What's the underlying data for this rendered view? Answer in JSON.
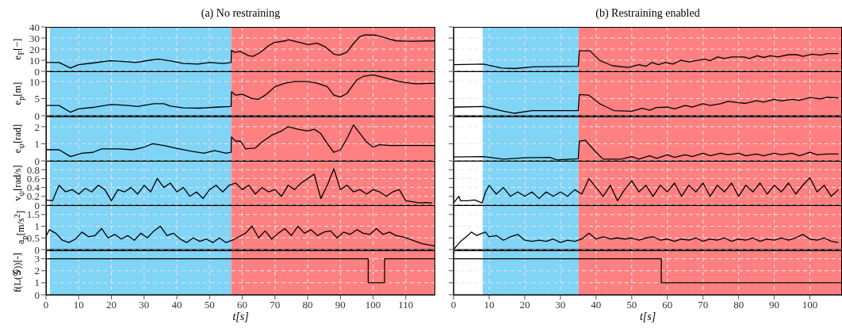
{
  "chart_data": [
    {
      "type": "line",
      "title": "(a) No restraining",
      "ylabel": "e$_{F}$[−]",
      "color": "#000000",
      "grid": true,
      "tick_labels": "y",
      "xlim": [
        0,
        119
      ],
      "xticks": [
        0,
        10,
        20,
        30,
        40,
        50,
        60,
        70,
        80,
        90,
        100,
        110
      ],
      "ylim": [
        0,
        40
      ],
      "yticks": [
        0,
        10,
        20,
        30,
        40
      ],
      "bands": [
        {
          "axis": "x",
          "from": 1.2,
          "to": 56.6,
          "color": "#80d4f6"
        },
        {
          "axis": "x",
          "from": 56.6,
          "to": 119,
          "color": "#ff8080"
        }
      ],
      "x": [
        0,
        4,
        7.5,
        10,
        14.4,
        19.6,
        23,
        27.4,
        31.7,
        34.3,
        37.8,
        42,
        46.5,
        50,
        54.2,
        56.6,
        56.7,
        57.7,
        59.4,
        62,
        63.3,
        65.5,
        68,
        69.8,
        73.3,
        74.1,
        77.6,
        80.2,
        82.8,
        85.4,
        88,
        89.7,
        91.9,
        94,
        95.8,
        97.5,
        101,
        104.4,
        107,
        111.3,
        119
      ],
      "values": [
        8,
        8,
        3,
        6,
        7.5,
        9.5,
        9,
        8,
        10,
        11,
        9.5,
        7,
        6.5,
        8,
        7,
        8,
        19,
        17,
        18,
        14,
        13.5,
        17,
        23,
        26,
        27.5,
        28.5,
        26,
        24,
        25.5,
        22,
        15.5,
        14.5,
        17,
        25,
        31,
        33,
        32.5,
        29.5,
        27.5,
        27,
        27.5
      ]
    },
    {
      "type": "line",
      "ylabel": "e$_{p}$[m]",
      "color": "#000000",
      "grid": true,
      "tick_labels": "y",
      "xlim": [
        0,
        119
      ],
      "xticks": [
        0,
        10,
        20,
        30,
        40,
        50,
        60,
        70,
        80,
        90,
        100,
        110
      ],
      "ylim": [
        0,
        13
      ],
      "yticks": [
        0,
        5,
        10
      ],
      "bands": [
        {
          "axis": "x",
          "from": 1.2,
          "to": 56.6,
          "color": "#80d4f6"
        },
        {
          "axis": "x",
          "from": 56.6,
          "to": 119,
          "color": "#ff8080"
        }
      ],
      "x": [
        0,
        4,
        7.5,
        10,
        15,
        20,
        25,
        28,
        33,
        36,
        38,
        42,
        47,
        52,
        56.6,
        56.7,
        58,
        60,
        63,
        65,
        67,
        70,
        73,
        76,
        80,
        83,
        86,
        88,
        90,
        92,
        95,
        97,
        100,
        104,
        108,
        113,
        119
      ],
      "values": [
        3,
        3,
        1,
        2,
        2.5,
        3.3,
        3,
        2.7,
        3.5,
        3.5,
        2.8,
        2.3,
        2.2,
        2.5,
        2.7,
        7,
        6,
        6.3,
        5,
        4.8,
        6,
        8.5,
        9.5,
        10,
        10,
        9.5,
        8.5,
        6,
        5.5,
        6.5,
        10.5,
        11.5,
        12,
        11,
        10,
        9.3,
        9.5
      ]
    },
    {
      "type": "line",
      "ylabel": "e$_{ψ}$[rad]",
      "color": "#000000",
      "grid": true,
      "tick_labels": "y",
      "xlim": [
        0,
        119
      ],
      "xticks": [
        0,
        10,
        20,
        30,
        40,
        50,
        60,
        70,
        80,
        90,
        100,
        110
      ],
      "ylim": [
        0,
        2.6
      ],
      "yticks": [
        0,
        1,
        2
      ],
      "bands": [
        {
          "axis": "x",
          "from": 1.2,
          "to": 56.6,
          "color": "#80d4f6"
        },
        {
          "axis": "x",
          "from": 56.6,
          "to": 119,
          "color": "#ff8080"
        }
      ],
      "x": [
        0,
        4,
        7.5,
        11,
        14.4,
        17,
        22.2,
        26.5,
        30,
        32.6,
        36,
        39.5,
        44.7,
        48.2,
        51.6,
        55.1,
        56.6,
        56.7,
        58,
        59.5,
        61,
        64,
        66,
        69,
        72,
        74,
        77,
        80,
        82,
        84,
        86,
        88,
        90,
        92,
        94,
        96,
        98,
        100,
        102,
        105,
        119
      ],
      "values": [
        0.65,
        0.65,
        0.25,
        0.45,
        0.5,
        0.7,
        0.7,
        0.65,
        0.8,
        1.0,
        0.9,
        0.75,
        0.55,
        0.45,
        0.6,
        0.45,
        0.5,
        1.4,
        1.15,
        1.15,
        0.7,
        0.75,
        1.1,
        1.5,
        1.75,
        2.0,
        1.85,
        1.75,
        1.85,
        1.6,
        1.0,
        0.5,
        0.65,
        1.3,
        2.1,
        1.6,
        1.1,
        0.8,
        0.95,
        0.9,
        0.9
      ]
    },
    {
      "type": "line",
      "ylabel": "v$_{ψ}$[rad/s]",
      "color": "#000000",
      "grid": true,
      "tick_labels": "y",
      "xlim": [
        0,
        119
      ],
      "xticks": [
        0,
        10,
        20,
        30,
        40,
        50,
        60,
        70,
        80,
        90,
        100,
        110
      ],
      "ylim": [
        0,
        1
      ],
      "yticks": [
        0,
        0.2,
        0.4,
        0.6,
        0.8
      ],
      "bands": [
        {
          "axis": "x",
          "from": 1.2,
          "to": 56.6,
          "color": "#80d4f6"
        },
        {
          "axis": "x",
          "from": 56.6,
          "to": 119,
          "color": "#ff8080"
        }
      ],
      "x": [
        0,
        2,
        4,
        6,
        8,
        10,
        12,
        14,
        16,
        18,
        20,
        22,
        24,
        26,
        28,
        30,
        32,
        34,
        36,
        38,
        40,
        42,
        44,
        46,
        48,
        50,
        52,
        54,
        56,
        58,
        60,
        62,
        64,
        66,
        68,
        70,
        72,
        74,
        76,
        78,
        80,
        82,
        84,
        86,
        88,
        90,
        92,
        94,
        96,
        98,
        100,
        102,
        104,
        106,
        108,
        110,
        112,
        114,
        116,
        118
      ],
      "values": [
        0.12,
        0.1,
        0.45,
        0.3,
        0.35,
        0.25,
        0.38,
        0.3,
        0.45,
        0.35,
        0.1,
        0.35,
        0.3,
        0.4,
        0.25,
        0.45,
        0.3,
        0.6,
        0.4,
        0.5,
        0.3,
        0.4,
        0.2,
        0.3,
        0.15,
        0.35,
        0.45,
        0.3,
        0.45,
        0.5,
        0.35,
        0.45,
        0.25,
        0.4,
        0.3,
        0.35,
        0.2,
        0.45,
        0.35,
        0.5,
        0.6,
        0.7,
        0.15,
        0.45,
        0.82,
        0.35,
        0.45,
        0.3,
        0.35,
        0.25,
        0.35,
        0.3,
        0.2,
        0.3,
        0.35,
        0.1,
        0.08,
        0.05,
        0.06,
        0.05
      ]
    },
    {
      "type": "line",
      "ylabel": "a$_{p}$[m/s$^{2}$]",
      "color": "#000000",
      "grid": true,
      "tick_labels": "y",
      "xlim": [
        0,
        119
      ],
      "xticks": [
        0,
        10,
        20,
        30,
        40,
        50,
        60,
        70,
        80,
        90,
        100,
        110
      ],
      "ylim": [
        0,
        1.9
      ],
      "yticks": [
        0,
        0.5,
        1,
        1.5
      ],
      "bands": [
        {
          "axis": "x",
          "from": 1.2,
          "to": 56.6,
          "color": "#80d4f6"
        },
        {
          "axis": "x",
          "from": 56.6,
          "to": 119,
          "color": "#ff8080"
        }
      ],
      "x": [
        0,
        1,
        3,
        5,
        7,
        9,
        11,
        13,
        15,
        17,
        19,
        21,
        23,
        25,
        27,
        29,
        31,
        33,
        35,
        37,
        39,
        41,
        43,
        45,
        47,
        49,
        51,
        53,
        55,
        57,
        59,
        61,
        63,
        65,
        67,
        69,
        71,
        73,
        75,
        77,
        79,
        81,
        83,
        85,
        87,
        89,
        91,
        93,
        95,
        97,
        99,
        101,
        103,
        105,
        107,
        109,
        111,
        113,
        115,
        117,
        119
      ],
      "values": [
        0.55,
        0.85,
        0.7,
        0.4,
        0.3,
        0.45,
        0.75,
        0.55,
        0.6,
        0.9,
        0.5,
        0.65,
        0.45,
        0.6,
        0.4,
        0.7,
        0.5,
        0.8,
        1.0,
        0.6,
        0.7,
        0.45,
        0.3,
        0.5,
        0.35,
        0.45,
        0.3,
        0.5,
        0.3,
        0.4,
        0.55,
        0.7,
        1.0,
        0.5,
        0.8,
        0.45,
        0.7,
        0.9,
        0.6,
        1.0,
        0.7,
        0.85,
        0.6,
        0.75,
        0.8,
        0.5,
        0.75,
        0.65,
        0.85,
        0.7,
        0.65,
        0.9,
        0.65,
        0.75,
        0.6,
        0.55,
        0.45,
        0.35,
        0.25,
        0.2,
        0.15
      ]
    },
    {
      "type": "step",
      "ylabel": "f(L(𝒢))[-]",
      "xlabel": "t[s]",
      "color": "#000000",
      "grid": true,
      "xlim": [
        0,
        119
      ],
      "xticks": [
        0,
        10,
        20,
        30,
        40,
        50,
        60,
        70,
        80,
        90,
        100,
        110
      ],
      "ylim": [
        0,
        3.7
      ],
      "yticks": [
        0,
        1,
        2,
        3
      ],
      "bands": [
        {
          "axis": "x",
          "from": 1.2,
          "to": 56.6,
          "color": "#80d4f6"
        },
        {
          "axis": "x",
          "from": 56.6,
          "to": 119,
          "color": "#ff8080"
        }
      ],
      "x": [
        0,
        98.5,
        103.5,
        119
      ],
      "values": [
        3,
        1,
        3,
        3
      ]
    },
    {
      "type": "line",
      "title": "(b) Restraining enabled",
      "color": "#000000",
      "grid": true,
      "tick_labels": false,
      "xlim": [
        0,
        109
      ],
      "xticks": [
        0,
        10,
        20,
        30,
        40,
        50,
        60,
        70,
        80,
        90,
        100
      ],
      "ylim": [
        0,
        40
      ],
      "yticks": [
        0,
        10,
        20,
        30,
        40
      ],
      "bands": [
        {
          "axis": "x",
          "from": 8.2,
          "to": 35.1,
          "color": "#80d4f6"
        },
        {
          "axis": "x",
          "from": 35.1,
          "to": 109,
          "color": "#ff8080"
        }
      ],
      "x": [
        0,
        8.4,
        13.5,
        17.2,
        22.4,
        35,
        35.3,
        38.3,
        40.9,
        44.6,
        49,
        52,
        54,
        55.7,
        57.5,
        59.4,
        61.5,
        63.8,
        66,
        70.4,
        72,
        74.1,
        76,
        78,
        81.5,
        83,
        85.2,
        87,
        88.9,
        91,
        94,
        96.3,
        98,
        100.7,
        103,
        105,
        108
      ],
      "values": [
        6,
        6.5,
        3,
        2.5,
        4,
        4.5,
        18.5,
        18.5,
        10,
        5,
        3.5,
        6,
        4.5,
        8,
        6,
        8,
        6.5,
        10,
        8.5,
        11,
        9.5,
        13,
        11.5,
        13,
        13,
        11.5,
        14,
        12.5,
        14,
        13,
        15,
        15,
        13.5,
        15.5,
        14.5,
        16,
        16
      ]
    },
    {
      "type": "line",
      "color": "#000000",
      "grid": true,
      "tick_labels": false,
      "xlim": [
        0,
        109
      ],
      "xticks": [
        0,
        10,
        20,
        30,
        40,
        50,
        60,
        70,
        80,
        90,
        100
      ],
      "ylim": [
        0,
        13
      ],
      "yticks": [
        0,
        5,
        10
      ],
      "bands": [
        {
          "axis": "x",
          "from": 8.2,
          "to": 35.1,
          "color": "#80d4f6"
        },
        {
          "axis": "x",
          "from": 35.1,
          "to": 109,
          "color": "#ff8080"
        }
      ],
      "x": [
        0,
        8.4,
        14,
        17,
        22,
        35,
        35.3,
        38,
        41,
        45,
        50,
        53,
        55,
        57,
        60,
        62,
        65,
        67,
        70,
        72,
        75,
        77,
        80,
        82,
        85,
        87,
        90,
        92,
        95,
        97,
        100,
        103,
        105,
        108
      ],
      "values": [
        2.5,
        2.7,
        1.3,
        0.7,
        1.5,
        1.5,
        6.2,
        6,
        3.5,
        1.5,
        1.3,
        2.2,
        1.6,
        2.4,
        2.5,
        2,
        3,
        2.5,
        3.5,
        3,
        3.5,
        4.2,
        3.8,
        3.6,
        4.4,
        4,
        4.8,
        4.3,
        4.8,
        4.5,
        5.3,
        4.9,
        5.4,
        5.2
      ]
    },
    {
      "type": "line",
      "color": "#000000",
      "grid": true,
      "tick_labels": false,
      "xlim": [
        0,
        109
      ],
      "xticks": [
        0,
        10,
        20,
        30,
        40,
        50,
        60,
        70,
        80,
        90,
        100
      ],
      "ylim": [
        0,
        2.6
      ],
      "yticks": [
        0,
        1,
        2
      ],
      "bands": [
        {
          "axis": "x",
          "from": 8.2,
          "to": 35.1,
          "color": "#80d4f6"
        },
        {
          "axis": "x",
          "from": 35.1,
          "to": 109,
          "color": "#ff8080"
        }
      ],
      "x": [
        0,
        8.4,
        14,
        20,
        27,
        29,
        35,
        35.3,
        37,
        40,
        42,
        47,
        50,
        52,
        55,
        57,
        60,
        62,
        65,
        67,
        70,
        72,
        75,
        77,
        80,
        82,
        85,
        87,
        90,
        92,
        95,
        97,
        100,
        102,
        105,
        108
      ],
      "values": [
        0.23,
        0.25,
        0.1,
        0.18,
        0.2,
        0.05,
        0.12,
        1.15,
        1.2,
        0.5,
        0.1,
        0.1,
        0.25,
        0.1,
        0.3,
        0.15,
        0.35,
        0.2,
        0.35,
        0.25,
        0.45,
        0.3,
        0.45,
        0.35,
        0.45,
        0.3,
        0.4,
        0.3,
        0.45,
        0.35,
        0.45,
        0.3,
        0.5,
        0.35,
        0.4,
        0.4
      ]
    },
    {
      "type": "line",
      "color": "#000000",
      "grid": true,
      "tick_labels": false,
      "xlim": [
        0,
        109
      ],
      "xticks": [
        0,
        10,
        20,
        30,
        40,
        50,
        60,
        70,
        80,
        90,
        100
      ],
      "ylim": [
        0,
        1
      ],
      "yticks": [
        0,
        0.2,
        0.4,
        0.6,
        0.8
      ],
      "bands": [
        {
          "axis": "x",
          "from": 8.2,
          "to": 35.1,
          "color": "#80d4f6"
        },
        {
          "axis": "x",
          "from": 35.1,
          "to": 109,
          "color": "#ff8080"
        }
      ],
      "x": [
        0,
        1.5,
        2,
        4,
        6,
        8,
        9,
        10,
        12,
        14,
        16,
        18,
        20,
        22,
        24,
        26,
        28,
        30,
        32,
        34,
        36,
        38,
        40,
        42,
        44,
        46,
        48,
        50,
        52,
        54,
        56,
        58,
        60,
        62,
        64,
        66,
        68,
        70,
        72,
        74,
        76,
        78,
        80,
        82,
        84,
        86,
        88,
        90,
        92,
        94,
        96,
        98,
        100,
        102,
        104,
        106,
        108
      ],
      "values": [
        0.05,
        0.2,
        0.1,
        0.1,
        0.12,
        0.05,
        0.3,
        0.45,
        0.25,
        0.4,
        0.2,
        0.3,
        0.2,
        0.3,
        0.15,
        0.3,
        0.2,
        0.3,
        0.2,
        0.35,
        0.25,
        0.6,
        0.4,
        0.2,
        0.45,
        0.1,
        0.35,
        0.55,
        0.3,
        0.45,
        0.2,
        0.45,
        0.3,
        0.5,
        0.2,
        0.45,
        0.3,
        0.5,
        0.2,
        0.45,
        0.3,
        0.5,
        0.2,
        0.45,
        0.3,
        0.5,
        0.25,
        0.45,
        0.3,
        0.5,
        0.25,
        0.45,
        0.62,
        0.3,
        0.45,
        0.2,
        0.35
      ]
    },
    {
      "type": "line",
      "color": "#000000",
      "grid": true,
      "tick_labels": false,
      "xlim": [
        0,
        109
      ],
      "xticks": [
        0,
        10,
        20,
        30,
        40,
        50,
        60,
        70,
        80,
        90,
        100
      ],
      "ylim": [
        0,
        1.9
      ],
      "yticks": [
        0,
        0.5,
        1,
        1.5
      ],
      "bands": [
        {
          "axis": "x",
          "from": 8.2,
          "to": 35.1,
          "color": "#80d4f6"
        },
        {
          "axis": "x",
          "from": 35.1,
          "to": 109,
          "color": "#ff8080"
        }
      ],
      "x": [
        0,
        2,
        4,
        5,
        6.5,
        8,
        9,
        10,
        12,
        14,
        16,
        18,
        20,
        22,
        24,
        26,
        28,
        30,
        32,
        34,
        36,
        38,
        40,
        42,
        44,
        46,
        48,
        50,
        52,
        54,
        56,
        58,
        60,
        62,
        64,
        66,
        68,
        70,
        72,
        74,
        76,
        78,
        80,
        82,
        84,
        86,
        88,
        90,
        92,
        94,
        96,
        98,
        100,
        102,
        104,
        106,
        108
      ],
      "values": [
        0,
        0.35,
        0.6,
        0.75,
        0.6,
        0.7,
        0.75,
        0.55,
        0.6,
        0.4,
        0.55,
        0.65,
        0.4,
        0.35,
        0.4,
        0.35,
        0.45,
        0.3,
        0.4,
        0.35,
        0.45,
        0.7,
        0.45,
        0.55,
        0.45,
        0.5,
        0.45,
        0.5,
        0.4,
        0.5,
        0.55,
        0.4,
        0.45,
        0.35,
        0.45,
        0.4,
        0.5,
        0.35,
        0.45,
        0.4,
        0.5,
        0.35,
        0.45,
        0.4,
        0.5,
        0.35,
        0.45,
        0.4,
        0.5,
        0.4,
        0.5,
        0.65,
        0.45,
        0.4,
        0.5,
        0.35,
        0.3
      ]
    },
    {
      "type": "step",
      "xlabel": "t[s]",
      "color": "#000000",
      "grid": true,
      "tick_labels": "x",
      "xlim": [
        0,
        109
      ],
      "xticks": [
        0,
        10,
        20,
        30,
        40,
        50,
        60,
        70,
        80,
        90,
        100
      ],
      "ylim": [
        0,
        3.7
      ],
      "yticks": [
        0,
        1,
        2,
        3
      ],
      "bands": [
        {
          "axis": "x",
          "from": 8.2,
          "to": 35.1,
          "color": "#80d4f6"
        },
        {
          "axis": "x",
          "from": 35.1,
          "to": 109,
          "color": "#ff8080"
        }
      ],
      "x": [
        0,
        58.3,
        109
      ],
      "values": [
        3,
        1,
        1
      ]
    }
  ]
}
